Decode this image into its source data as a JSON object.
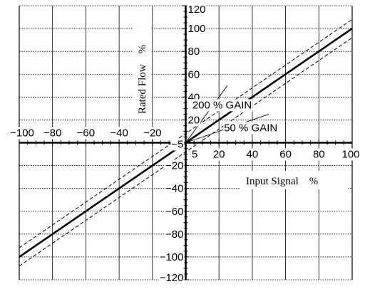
{
  "chart_data": {
    "type": "line",
    "xlabel": "Input Signal　%",
    "ylabel": "Rated Flow　%",
    "xlim": [
      -100,
      100
    ],
    "ylim": [
      -120,
      120
    ],
    "grid": true,
    "x_ticks": [
      "−100",
      "−80",
      "−60",
      "−40",
      "−20",
      "5",
      "20",
      "40",
      "60",
      "80",
      "100"
    ],
    "x_tick_values": [
      -100,
      -80,
      -60,
      -40,
      -20,
      5,
      20,
      40,
      60,
      80,
      100
    ],
    "y_ticks": [
      "120",
      "100",
      "80",
      "60",
      "40",
      "20",
      "−5",
      "−20",
      "−40",
      "−60",
      "−80",
      "−100",
      "−120"
    ],
    "y_tick_values": [
      120,
      100,
      80,
      60,
      40,
      20,
      -5,
      -20,
      -40,
      -60,
      -80,
      -100,
      -120
    ],
    "series": [
      {
        "style": "solid-thick",
        "x": [
          -100,
          100
        ],
        "y": [
          -100,
          100
        ]
      },
      {
        "style": "dashed",
        "x": [
          -100,
          100
        ],
        "y": [
          -92,
          108
        ]
      },
      {
        "style": "dashed",
        "x": [
          -100,
          100
        ],
        "y": [
          -108,
          92
        ]
      },
      {
        "style": "thin",
        "x": [
          0,
          25
        ],
        "y": [
          0,
          50
        ]
      },
      {
        "style": "thin",
        "x": [
          0,
          50
        ],
        "y": [
          0,
          25
        ]
      }
    ],
    "annotations": [
      {
        "text": "200 % GAIN",
        "x": 4,
        "y": 30
      },
      {
        "text": "50 % GAIN",
        "x": 23,
        "y": 10
      }
    ]
  }
}
